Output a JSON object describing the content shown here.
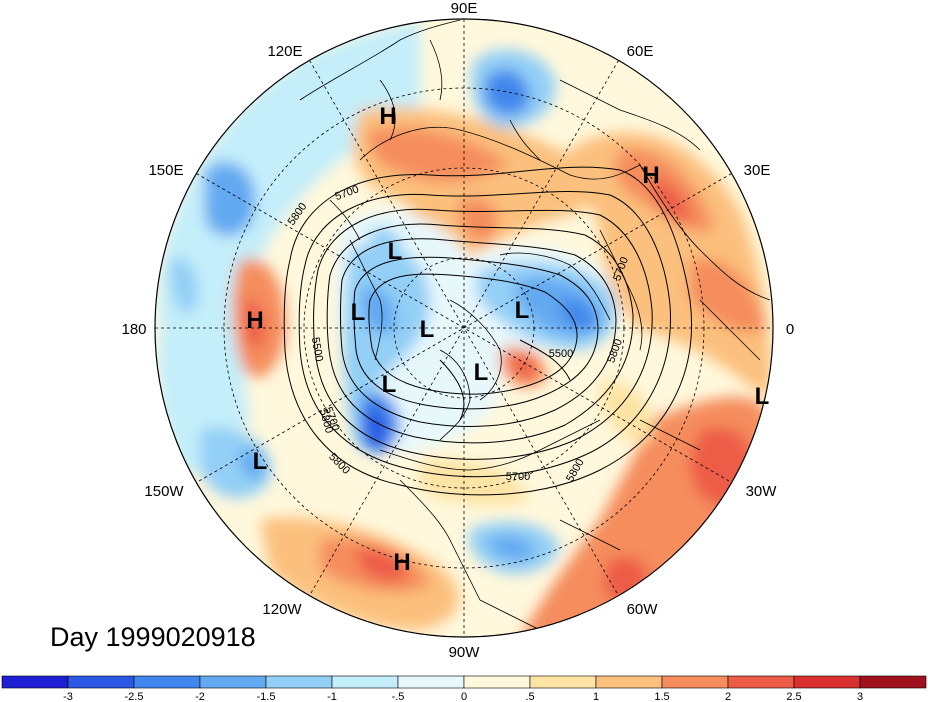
{
  "title": "Day 1999020918",
  "longitude_labels": [
    "90E",
    "60E",
    "30E",
    "0",
    "30W",
    "60W",
    "90W",
    "120W",
    "150W",
    "180",
    "150E",
    "120E"
  ],
  "pressure_centers": [
    {
      "type": "H",
      "lon_lat": "N Siberia"
    },
    {
      "type": "H",
      "lon_lat": "E Europe"
    },
    {
      "type": "H",
      "lon_lat": "Dateline"
    },
    {
      "type": "H",
      "lon_lat": "E Pacific"
    },
    {
      "type": "L",
      "lon_lat": "E Siberia"
    },
    {
      "type": "L",
      "lon_lat": "Chukotka"
    },
    {
      "type": "L",
      "lon_lat": "Arctic"
    },
    {
      "type": "L",
      "lon_lat": "Canada"
    },
    {
      "type": "L",
      "lon_lat": "Baffin"
    },
    {
      "type": "L",
      "lon_lat": "N Atlantic"
    },
    {
      "type": "L",
      "lon_lat": "Subtropical Atlantic"
    },
    {
      "type": "L",
      "lon_lat": "Central Pacific"
    }
  ],
  "contour_labels": [
    "5700",
    "5800",
    "5800",
    "5500",
    "5700",
    "5800",
    "5700",
    "5800",
    "5500",
    "5700",
    "5800"
  ],
  "colorbar": {
    "colors": [
      "#1e1ed2",
      "#2a57e4",
      "#3f87ec",
      "#62a9f1",
      "#93cff6",
      "#c4eefa",
      "#e7f8fb",
      "#fff8dc",
      "#fde4a4",
      "#fbc07d",
      "#f58d5d",
      "#ed5c47",
      "#d8302f",
      "#a0111e"
    ],
    "ticks": [
      "-3",
      "-2.5",
      "-2",
      "-1.5",
      "-1",
      "-.5",
      "0",
      ".5",
      "1",
      "1.5",
      "2",
      "2.5",
      "3"
    ]
  }
}
